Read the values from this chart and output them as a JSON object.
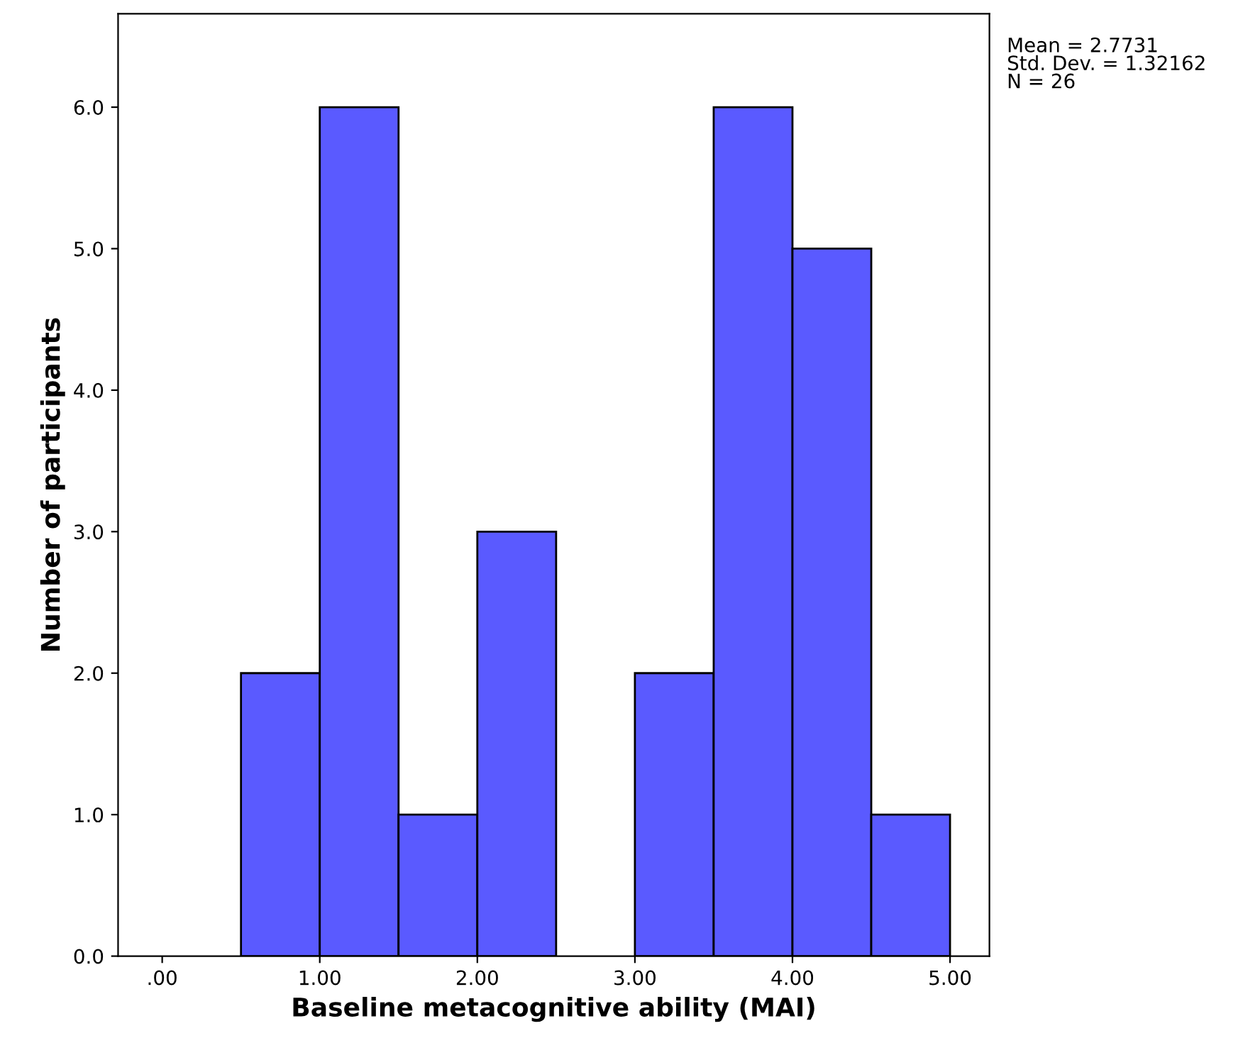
{
  "chart_data": {
    "type": "histogram",
    "xlabel": "Baseline metacognitive ability (MAI)",
    "ylabel": "Number of participants",
    "bins": [
      0.5,
      1.0,
      1.5,
      2.0,
      2.5,
      3.0,
      3.5,
      4.0,
      4.5,
      5.0
    ],
    "values": [
      2,
      6,
      1,
      3,
      0,
      2,
      6,
      5,
      1
    ],
    "color": "#5a5aff",
    "xlim": [
      -0.28,
      5.25
    ],
    "ylim": [
      0,
      6.66
    ],
    "xticks": [
      {
        "value": 0,
        "label": ".00"
      },
      {
        "value": 1,
        "label": "1.00"
      },
      {
        "value": 2,
        "label": "2.00"
      },
      {
        "value": 3,
        "label": "3.00"
      },
      {
        "value": 4,
        "label": "4.00"
      },
      {
        "value": 5,
        "label": "5.00"
      }
    ],
    "yticks": [
      {
        "value": 0,
        "label": "0.0"
      },
      {
        "value": 1,
        "label": "1.0"
      },
      {
        "value": 2,
        "label": "2.0"
      },
      {
        "value": 3,
        "label": "3.0"
      },
      {
        "value": 4,
        "label": "4.0"
      },
      {
        "value": 5,
        "label": "5.0"
      },
      {
        "value": 6,
        "label": "6.0"
      }
    ],
    "annotations": [
      "Mean = 2.7731",
      "Std. Dev. = 1.32162",
      "N = 26"
    ]
  }
}
